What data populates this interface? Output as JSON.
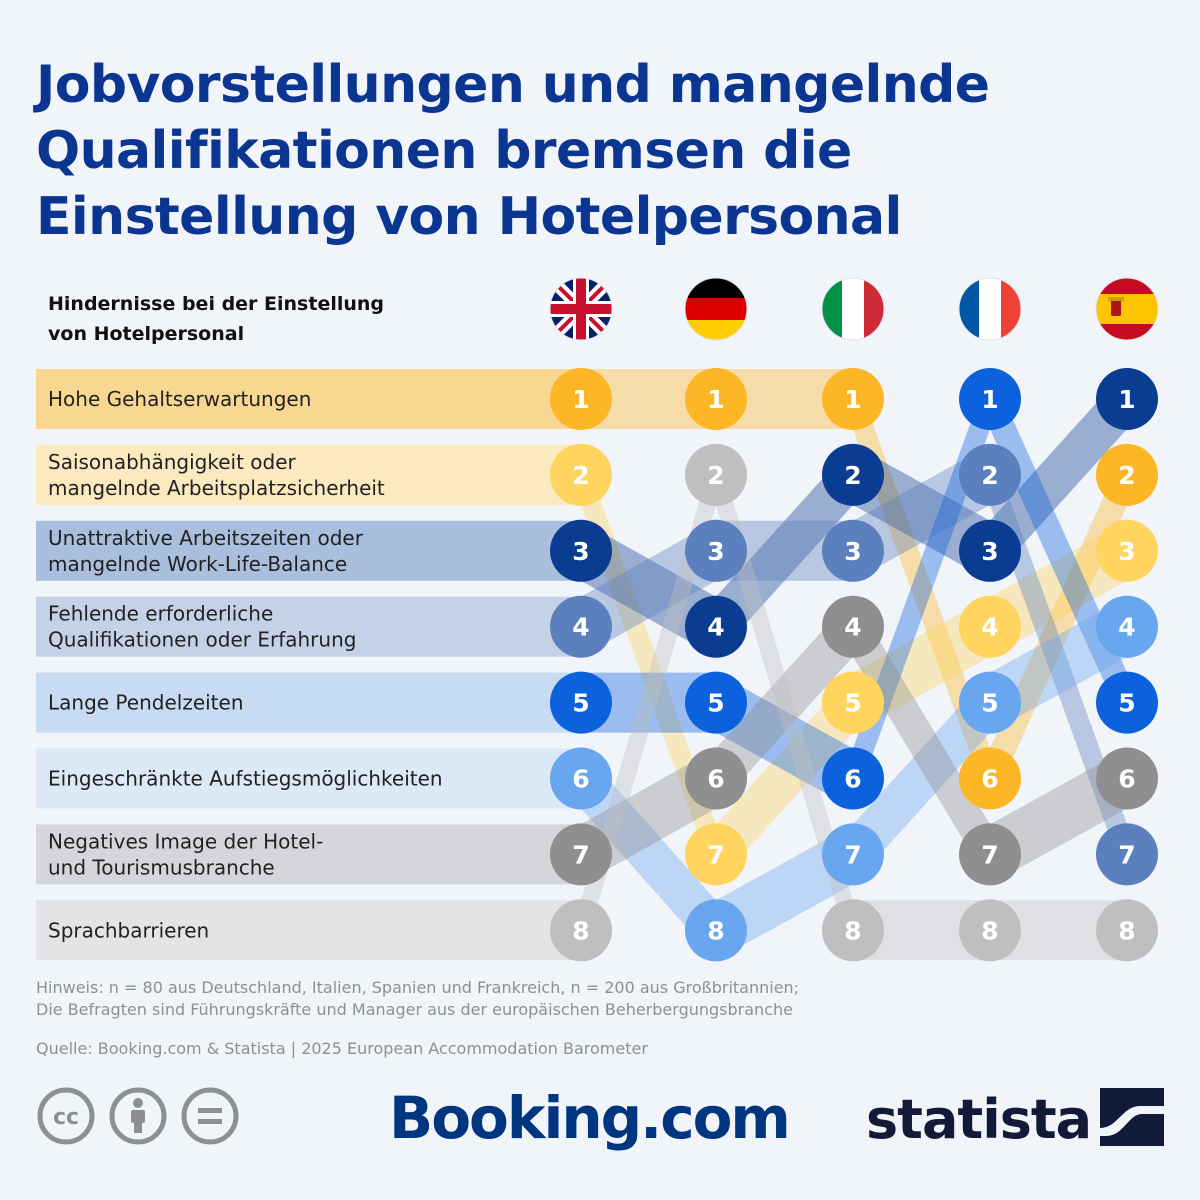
{
  "title_lines": [
    "Jobvorstellungen und mangelnde",
    "Qualifikationen bremsen die",
    "Einstellung von Hotelpersonal"
  ],
  "subtitle_lines": [
    "Hindernisse bei der Einstellung",
    "von Hotelpersonal"
  ],
  "chart_data": {
    "type": "table",
    "countries": [
      {
        "icon": "uk-flag-icon"
      },
      {
        "icon": "germany-flag-icon"
      },
      {
        "icon": "italy-flag-icon"
      },
      {
        "icon": "france-flag-icon"
      },
      {
        "icon": "spain-flag-icon"
      }
    ],
    "categories": [
      {
        "label_lines": [
          "Hohe Gehaltserwartungen"
        ],
        "color": "#fdb626",
        "bg": "#f8d891",
        "ranks": [
          1,
          1,
          1,
          6,
          2
        ]
      },
      {
        "label_lines": [
          "Saisonabhängigkeit oder",
          "mangelnde Arbeitsplatzsicherheit"
        ],
        "color": "#ffd45f",
        "bg": "#fbe9bf",
        "ranks": [
          2,
          7,
          5,
          4,
          3
        ]
      },
      {
        "label_lines": [
          "Unattraktive Arbeitszeiten oder",
          "mangelnde Work-Life-Balance"
        ],
        "color": "#0a3c91",
        "bg": "#a9bfdd",
        "ranks": [
          3,
          4,
          2,
          3,
          1
        ]
      },
      {
        "label_lines": [
          "Fehlende erforderliche",
          "Qualifikationen oder Erfahrung"
        ],
        "color": "#5c7fbd",
        "bg": "#c4d2e7",
        "ranks": [
          4,
          3,
          3,
          2,
          7
        ]
      },
      {
        "label_lines": [
          "Lange Pendelzeiten"
        ],
        "color": "#0c62dc",
        "bg": "#c7dbf3",
        "ranks": [
          5,
          5,
          6,
          1,
          5
        ]
      },
      {
        "label_lines": [
          "Eingeschränkte Aufstiegsmöglichkeiten"
        ],
        "color": "#68a6ef",
        "bg": "#dce9f7",
        "ranks": [
          6,
          8,
          7,
          5,
          4
        ]
      },
      {
        "label_lines": [
          "Negatives Image der Hotel-",
          "und Tourismusbranche"
        ],
        "color": "#8f8f8f",
        "bg": "#d5d6d9",
        "ranks": [
          7,
          6,
          4,
          7,
          6
        ]
      },
      {
        "label_lines": [
          "Sprachbarrieren"
        ],
        "color": "#bfbfbf",
        "bg": "#e3e4e6",
        "ranks": [
          8,
          2,
          8,
          8,
          8
        ]
      }
    ]
  },
  "notes_lines": [
    "Hinweis: n = 80 aus Deutschland, Italien, Spanien und Frankreich, n = 200 aus Großbritannien;",
    "Die Befragten sind Führungskräfte und Manager aus der europäischen Beherbergungsbranche"
  ],
  "source": "Quelle: Booking.com & Statista | 2025 European Accommodation Barometer",
  "license_icons": [
    "cc-icon",
    "attribution-icon",
    "no-derivatives-icon"
  ],
  "booking_logo": "Booking.com",
  "statista_logo": "statista"
}
